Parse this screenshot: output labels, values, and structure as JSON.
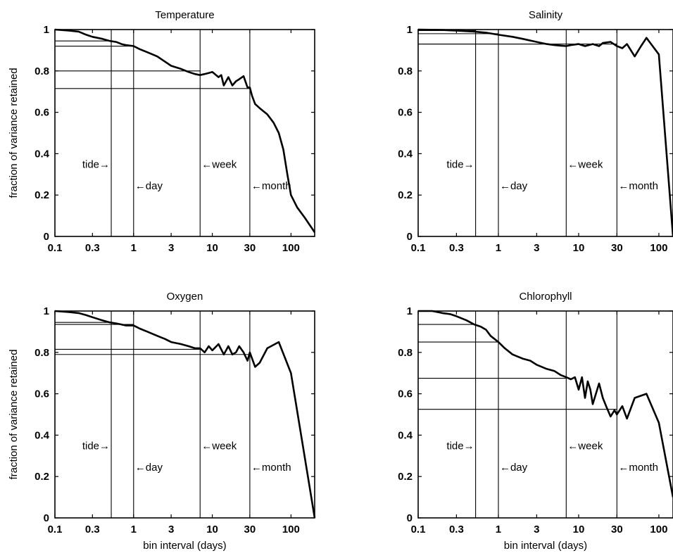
{
  "chart_data": [
    {
      "type": "line",
      "title": "Temperature",
      "xlabel": "",
      "ylabel": "fraction of variance retained",
      "xscale": "log",
      "xlim": [
        0.1,
        200
      ],
      "ylim": [
        0,
        1
      ],
      "xticks": [
        "0.1",
        "0.3",
        "1",
        "3",
        "10",
        "30",
        "100"
      ],
      "yticks": [
        "0",
        "0.2",
        "0.4",
        "0.6",
        "0.8",
        "1"
      ],
      "grid": false,
      "markers": [
        {
          "label": "tide→",
          "x": 0.52,
          "y": 0.348,
          "retained": 0.945,
          "side": "left"
        },
        {
          "label": "←day",
          "x": 1,
          "y": 0.245,
          "retained": 0.92,
          "side": "right"
        },
        {
          "label": "←week",
          "x": 7,
          "y": 0.348,
          "retained": 0.8,
          "side": "right"
        },
        {
          "label": "←month",
          "x": 30,
          "y": 0.245,
          "retained": 0.715,
          "side": "right"
        }
      ],
      "series": [
        {
          "x": [
            0.1,
            0.15,
            0.2,
            0.25,
            0.3,
            0.4,
            0.5,
            0.6,
            0.7,
            0.8,
            1.0,
            1.2,
            1.5,
            2.0,
            2.5,
            3.0,
            4.0,
            5.0,
            6.0,
            7.0,
            8.0,
            9.0,
            10,
            12,
            13,
            14,
            16,
            18,
            20,
            22,
            25,
            28,
            30,
            32,
            35,
            40,
            50,
            60,
            70,
            80,
            90,
            100,
            120,
            150,
            200
          ],
          "y": [
            1.0,
            0.995,
            0.99,
            0.975,
            0.965,
            0.955,
            0.945,
            0.94,
            0.93,
            0.925,
            0.92,
            0.905,
            0.89,
            0.87,
            0.845,
            0.825,
            0.81,
            0.795,
            0.785,
            0.78,
            0.785,
            0.79,
            0.795,
            0.77,
            0.78,
            0.73,
            0.77,
            0.73,
            0.75,
            0.76,
            0.775,
            0.72,
            0.72,
            0.68,
            0.64,
            0.62,
            0.59,
            0.55,
            0.5,
            0.42,
            0.3,
            0.2,
            0.14,
            0.09,
            0.02
          ]
        }
      ]
    },
    {
      "type": "line",
      "title": "Salinity",
      "xlabel": "",
      "ylabel": "",
      "xscale": "log",
      "xlim": [
        0.1,
        150
      ],
      "ylim": [
        0,
        1
      ],
      "xticks": [
        "0.1",
        "0.3",
        "1",
        "3",
        "10",
        "30",
        "100"
      ],
      "yticks": [
        "0",
        "0.2",
        "0.4",
        "0.6",
        "0.8",
        "1"
      ],
      "grid": false,
      "markers": [
        {
          "label": "tide→",
          "x": 0.52,
          "y": 0.348,
          "retained": 0.995,
          "side": "left"
        },
        {
          "label": "←day",
          "x": 1,
          "y": 0.245,
          "retained": 0.98,
          "side": "right"
        },
        {
          "label": "←week",
          "x": 7,
          "y": 0.348,
          "retained": 0.93,
          "side": "right"
        },
        {
          "label": "←month",
          "x": 30,
          "y": 0.245,
          "retained": 0.93,
          "side": "right"
        }
      ],
      "series": [
        {
          "x": [
            0.1,
            0.2,
            0.3,
            0.5,
            0.7,
            1.0,
            1.5,
            2.0,
            3.0,
            4.0,
            5.0,
            6.0,
            7.0,
            8.0,
            10,
            12,
            15,
            18,
            20,
            25,
            30,
            35,
            40,
            50,
            60,
            70,
            80,
            100,
            150
          ],
          "y": [
            1.0,
            0.998,
            0.995,
            0.99,
            0.985,
            0.975,
            0.965,
            0.955,
            0.94,
            0.93,
            0.925,
            0.922,
            0.92,
            0.925,
            0.93,
            0.92,
            0.93,
            0.92,
            0.935,
            0.94,
            0.92,
            0.91,
            0.93,
            0.87,
            0.92,
            0.96,
            0.93,
            0.88,
            0.0
          ]
        }
      ]
    },
    {
      "type": "line",
      "title": "Oxygen",
      "xlabel": "bin interval (days)",
      "ylabel": "fraction of variance retained",
      "xscale": "log",
      "xlim": [
        0.1,
        200
      ],
      "ylim": [
        0,
        1
      ],
      "xticks": [
        "0.1",
        "0.3",
        "1",
        "3",
        "10",
        "30",
        "100"
      ],
      "yticks": [
        "0",
        "0.2",
        "0.4",
        "0.6",
        "0.8",
        "1"
      ],
      "grid": false,
      "markers": [
        {
          "label": "tide→",
          "x": 0.52,
          "y": 0.348,
          "retained": 0.945,
          "side": "left"
        },
        {
          "label": "←day",
          "x": 1,
          "y": 0.245,
          "retained": 0.935,
          "side": "right"
        },
        {
          "label": "←week",
          "x": 7,
          "y": 0.348,
          "retained": 0.815,
          "side": "right"
        },
        {
          "label": "←month",
          "x": 30,
          "y": 0.245,
          "retained": 0.79,
          "side": "right"
        }
      ],
      "series": [
        {
          "x": [
            0.1,
            0.15,
            0.2,
            0.25,
            0.3,
            0.4,
            0.5,
            0.6,
            0.7,
            0.8,
            1.0,
            1.2,
            1.5,
            2.0,
            2.5,
            3.0,
            4.0,
            5.0,
            6.0,
            7.0,
            8.0,
            9.0,
            10,
            12,
            14,
            16,
            18,
            20,
            22,
            25,
            28,
            30,
            35,
            40,
            50,
            70,
            100,
            200
          ],
          "y": [
            1.0,
            0.995,
            0.99,
            0.98,
            0.97,
            0.955,
            0.945,
            0.94,
            0.935,
            0.93,
            0.93,
            0.915,
            0.9,
            0.88,
            0.865,
            0.85,
            0.84,
            0.83,
            0.82,
            0.82,
            0.8,
            0.83,
            0.81,
            0.84,
            0.79,
            0.83,
            0.79,
            0.8,
            0.83,
            0.8,
            0.76,
            0.8,
            0.73,
            0.75,
            0.82,
            0.85,
            0.7,
            0.0
          ]
        }
      ]
    },
    {
      "type": "line",
      "title": "Chlorophyll",
      "xlabel": "bin interval (days)",
      "ylabel": "",
      "xscale": "log",
      "xlim": [
        0.1,
        150
      ],
      "ylim": [
        0,
        1
      ],
      "xticks": [
        "0.1",
        "0.3",
        "1",
        "3",
        "10",
        "30",
        "100"
      ],
      "yticks": [
        "0",
        "0.2",
        "0.4",
        "0.6",
        "0.8",
        "1"
      ],
      "grid": false,
      "markers": [
        {
          "label": "tide→",
          "x": 0.52,
          "y": 0.348,
          "retained": 0.935,
          "side": "left"
        },
        {
          "label": "←day",
          "x": 1,
          "y": 0.245,
          "retained": 0.85,
          "side": "right"
        },
        {
          "label": "←week",
          "x": 7,
          "y": 0.348,
          "retained": 0.675,
          "side": "right"
        },
        {
          "label": "←month",
          "x": 30,
          "y": 0.245,
          "retained": 0.525,
          "side": "right"
        }
      ],
      "series": [
        {
          "x": [
            0.1,
            0.15,
            0.2,
            0.25,
            0.3,
            0.4,
            0.5,
            0.6,
            0.7,
            0.8,
            1.0,
            1.2,
            1.5,
            2.0,
            2.5,
            3.0,
            4.0,
            5.0,
            6.0,
            7.0,
            8.0,
            9.0,
            10,
            11,
            12,
            13,
            14,
            15,
            18,
            20,
            22,
            25,
            28,
            30,
            35,
            40,
            50,
            70,
            100,
            150
          ],
          "y": [
            1.0,
            1.0,
            0.99,
            0.985,
            0.975,
            0.955,
            0.935,
            0.925,
            0.91,
            0.88,
            0.85,
            0.82,
            0.79,
            0.77,
            0.76,
            0.74,
            0.72,
            0.71,
            0.69,
            0.68,
            0.67,
            0.68,
            0.62,
            0.68,
            0.58,
            0.66,
            0.62,
            0.55,
            0.65,
            0.58,
            0.54,
            0.49,
            0.52,
            0.5,
            0.54,
            0.48,
            0.58,
            0.6,
            0.46,
            0.1
          ]
        }
      ]
    }
  ]
}
